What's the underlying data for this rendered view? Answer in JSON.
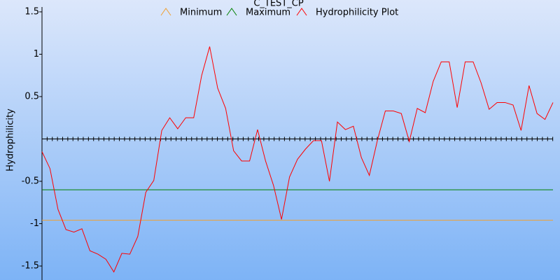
{
  "chart_data": {
    "type": "line",
    "title": "C_TEST_CP",
    "y_label": "Hydrophilicity",
    "ylim": [
      -1.665,
      1.64
    ],
    "yticks": [
      -1.5,
      -1,
      -0.5,
      0.5,
      1,
      1.5
    ],
    "series": [
      {
        "name": "Minimum",
        "color": "#f0a030",
        "values": [
          -0.96,
          -0.96,
          -0.96,
          -0.96,
          -0.96,
          -0.96,
          -0.96,
          -0.96,
          -0.96,
          -0.96,
          -0.96,
          -0.96,
          -0.96,
          -0.96,
          -0.96,
          -0.96,
          -0.96,
          -0.96,
          -0.96,
          -0.96,
          -0.96,
          -0.96,
          -0.96,
          -0.96,
          -0.96,
          -0.96,
          -0.96,
          -0.96,
          -0.96,
          -0.96,
          -0.96,
          -0.96,
          -0.96,
          -0.96,
          -0.96,
          -0.96,
          -0.96,
          -0.96,
          -0.96,
          -0.96,
          -0.96,
          -0.96,
          -0.96,
          -0.96,
          -0.96,
          -0.96,
          -0.96,
          -0.96,
          -0.96,
          -0.96,
          -0.96,
          -0.96,
          -0.96,
          -0.96,
          -0.96,
          -0.96,
          -0.96,
          -0.96,
          -0.96,
          -0.96,
          -0.96,
          -0.96,
          -0.96,
          -0.96,
          -0.96
        ]
      },
      {
        "name": "Maximum",
        "color": "#008000",
        "values": [
          -0.6,
          -0.6,
          -0.6,
          -0.6,
          -0.6,
          -0.6,
          -0.6,
          -0.6,
          -0.6,
          -0.6,
          -0.6,
          -0.6,
          -0.6,
          -0.6,
          -0.6,
          -0.6,
          -0.6,
          -0.6,
          -0.6,
          -0.6,
          -0.6,
          -0.6,
          -0.6,
          -0.6,
          -0.6,
          -0.6,
          -0.6,
          -0.6,
          -0.6,
          -0.6,
          -0.6,
          -0.6,
          -0.6,
          -0.6,
          -0.6,
          -0.6,
          -0.6,
          -0.6,
          -0.6,
          -0.6,
          -0.6,
          -0.6,
          -0.6,
          -0.6,
          -0.6,
          -0.6,
          -0.6,
          -0.6,
          -0.6,
          -0.6,
          -0.6,
          -0.6,
          -0.6,
          -0.6,
          -0.6,
          -0.6,
          -0.6,
          -0.6,
          -0.6,
          -0.6,
          -0.6,
          -0.6,
          -0.6,
          -0.6,
          -0.6
        ]
      },
      {
        "name": "Hydrophilicity Plot",
        "color": "#ff0000",
        "values": [
          -0.15,
          -0.35,
          -0.83,
          -1.07,
          -1.1,
          -1.06,
          -1.32,
          -1.36,
          -1.42,
          -1.57,
          -1.35,
          -1.36,
          -1.15,
          -0.63,
          -0.49,
          0.1,
          0.25,
          0.12,
          0.25,
          0.25,
          0.75,
          1.09,
          0.6,
          0.36,
          -0.14,
          -0.26,
          -0.26,
          0.11,
          -0.26,
          -0.55,
          -0.95,
          -0.45,
          -0.24,
          -0.12,
          -0.02,
          -0.02,
          -0.5,
          0.2,
          0.11,
          0.15,
          -0.22,
          -0.43,
          -0.02,
          0.33,
          0.33,
          0.3,
          -0.03,
          0.36,
          0.31,
          0.68,
          0.91,
          0.91,
          0.37,
          0.91,
          0.91,
          0.66,
          0.35,
          0.43,
          0.43,
          0.4,
          0.1,
          0.63,
          0.3,
          0.23,
          0.43
        ]
      }
    ]
  }
}
